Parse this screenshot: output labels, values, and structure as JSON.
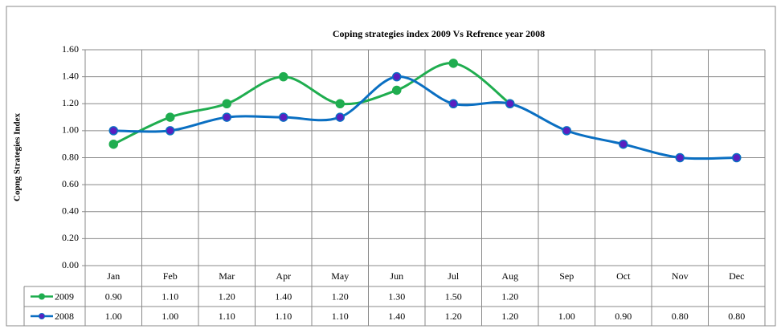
{
  "chart_data": {
    "type": "line",
    "title": "Coping strategies index 2009 Vs Refrence year 2008",
    "y_label": "Copng Strategies Index",
    "categories": [
      "Jan",
      "Feb",
      "Mar",
      "Apr",
      "May",
      "Jun",
      "Jul",
      "Aug",
      "Sep",
      "Oct",
      "Nov",
      "Dec"
    ],
    "series": [
      {
        "name": "2009",
        "color": "#1fad4f",
        "marker_fill": "#1fad4f",
        "values": [
          0.9,
          1.1,
          1.2,
          1.4,
          1.2,
          1.3,
          1.5,
          1.2,
          null,
          null,
          null,
          null
        ],
        "value_labels": [
          "0.90",
          "1.10",
          "1.20",
          "1.40",
          "1.20",
          "1.30",
          "1.50",
          "1.20",
          null,
          null,
          null,
          null
        ]
      },
      {
        "name": "2008",
        "color": "#0a6fc2",
        "marker_fill": "#5a1fc0",
        "values": [
          1.0,
          1.0,
          1.1,
          1.1,
          1.1,
          1.4,
          1.2,
          1.2,
          1.0,
          0.9,
          0.8,
          0.8
        ],
        "value_labels": [
          "1.00",
          "1.00",
          "1.10",
          "1.10",
          "1.10",
          "1.40",
          "1.20",
          "1.20",
          "1.00",
          "0.90",
          "0.80",
          "0.80"
        ]
      }
    ],
    "ylim": [
      0,
      1.6
    ],
    "yticks": [
      {
        "value": 0,
        "label": "0.00"
      },
      {
        "value": 0.2,
        "label": "0.20"
      },
      {
        "value": 0.4,
        "label": "0.40"
      },
      {
        "value": 0.6,
        "label": "0.60"
      },
      {
        "value": 0.8,
        "label": "0.80"
      },
      {
        "value": 1.0,
        "label": "1.00"
      },
      {
        "value": 1.2,
        "label": "1.20"
      },
      {
        "value": 1.4,
        "label": "1.40"
      },
      {
        "value": 1.6,
        "label": "1.60"
      }
    ],
    "grid": true,
    "smooth": true
  }
}
